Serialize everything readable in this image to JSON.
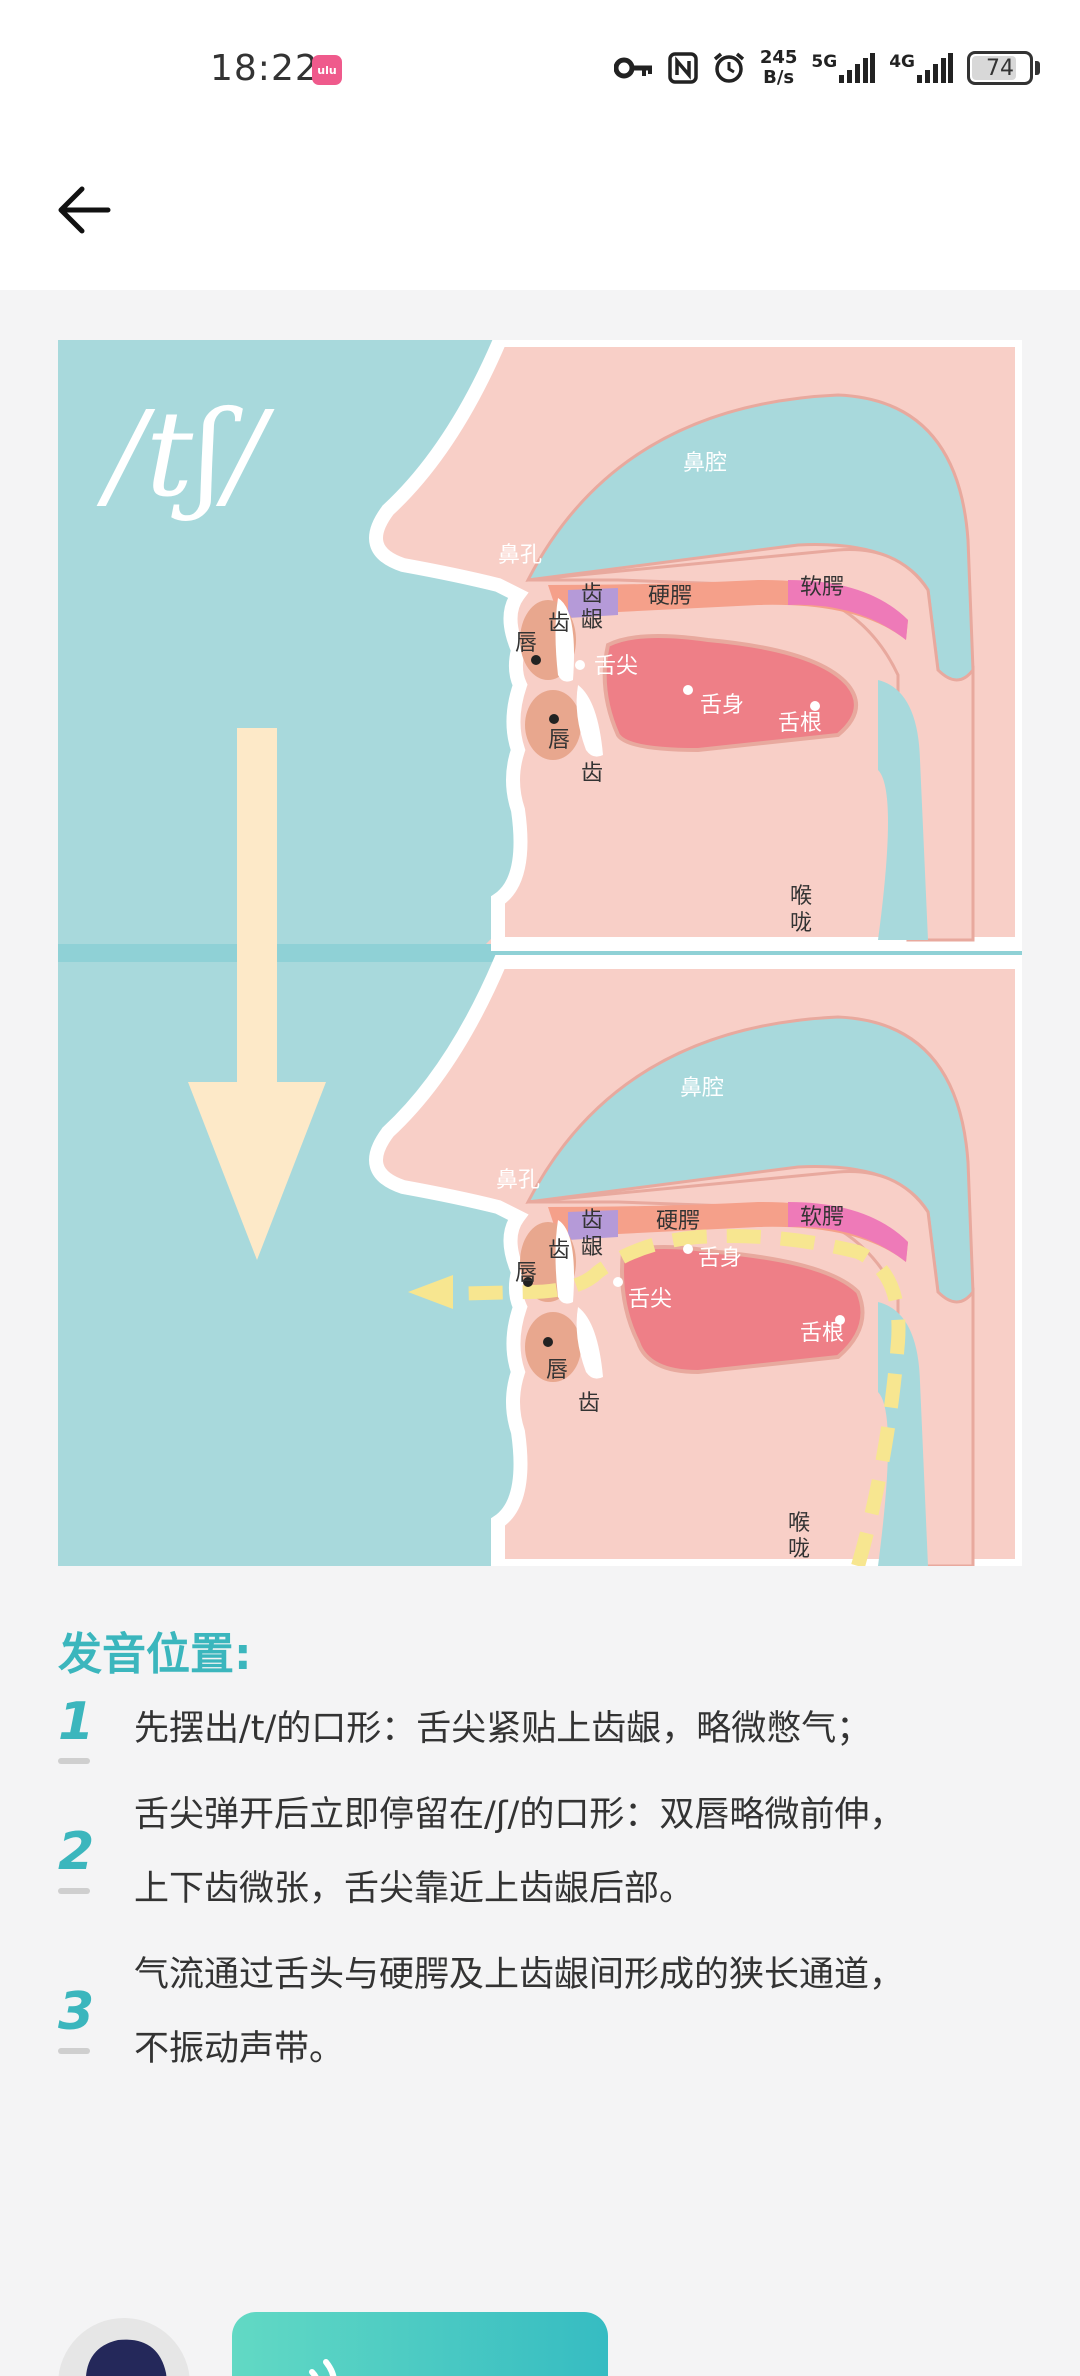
{
  "status_bar": {
    "time": "18:22",
    "app_badge": "ulu",
    "speed_value": "245",
    "speed_unit": "B/s",
    "net1": "5G",
    "net2": "4G",
    "battery": "74"
  },
  "header": {
    "back_icon": "arrow-left-icon"
  },
  "illustration": {
    "phoneme": "/tʃ/",
    "top": {
      "nasal_cavity": "鼻腔",
      "nostril": "鼻孔",
      "lip_upper": "唇",
      "teeth_upper": "齿",
      "alveolar_a": "齿",
      "alveolar_b": "龈",
      "hard_palate": "硬腭",
      "soft_palate": "软腭",
      "tongue_tip": "舌尖",
      "tongue_body": "舌身",
      "tongue_root": "舌根",
      "lip_lower": "唇",
      "teeth_lower": "齿",
      "throat_a": "喉",
      "throat_b": "咙"
    },
    "bottom": {
      "nasal_cavity": "鼻腔",
      "nostril": "鼻孔",
      "lip_upper": "唇",
      "teeth_upper": "齿",
      "alveolar_a": "齿",
      "alveolar_b": "龈",
      "hard_palate": "硬腭",
      "soft_palate": "软腭",
      "tongue_tip": "舌尖",
      "tongue_body": "舌身",
      "tongue_root": "舌根",
      "lip_lower": "唇",
      "teeth_lower": "齿",
      "throat_a": "喉",
      "throat_b": "咙"
    }
  },
  "content": {
    "title": "发音位置:",
    "steps": [
      {
        "num": "1",
        "line1": "先摆出/t/的口形：舌尖紧贴上齿龈，略微憋气；",
        "line2": ""
      },
      {
        "num": "2",
        "line1": "舌尖弹开后立即停留在/ʃ/的口形：双唇略微前伸，",
        "line2": "上下齿微张，舌尖靠近上齿龈后部。"
      },
      {
        "num": "3",
        "line1": "气流通过舌头与硬腭及上齿龈间形成的狭长通道，",
        "line2": "不振动声带。"
      }
    ]
  },
  "colors": {
    "accent": "#3bb6bd",
    "background": "#f4f4f5",
    "panel_blue": "#a8d9dc",
    "skin": "#f8cfc7",
    "tongue": "#ee7f87",
    "arrow": "#fde9c8",
    "airflow": "#f7e690"
  }
}
